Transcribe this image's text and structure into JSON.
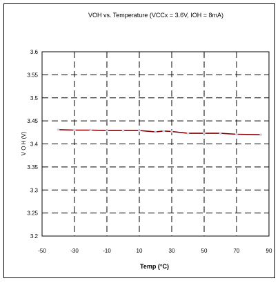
{
  "chart_data": {
    "type": "line",
    "title": "VOH vs. Temperature (VCCx = 3.6V, IOH = 8mA)",
    "xlabel": "Temp (°C)",
    "ylabel": "V O H  (V)",
    "xlim": [
      -50,
      90
    ],
    "ylim": [
      3.2,
      3.6
    ],
    "x_ticks": [
      -50,
      -30,
      -10,
      10,
      30,
      50,
      70,
      90
    ],
    "y_ticks": [
      3.2,
      3.25,
      3.3,
      3.35,
      3.4,
      3.45,
      3.5,
      3.55,
      3.6
    ],
    "x_tick_labels": [
      "-50",
      "-30",
      "-10",
      "10",
      "30",
      "50",
      "70",
      "90"
    ],
    "y_tick_labels": [
      "3.2",
      "3.25",
      "3.3",
      "3.35",
      "3.4",
      "3.45",
      "3.5",
      "3.55",
      "3.6"
    ],
    "grid": "dashed",
    "legend": "none",
    "series": [
      {
        "color": "#8b0000",
        "marker_color": "#c8d4ea",
        "x": [
          -40,
          -30,
          -20,
          -10,
          0,
          10,
          20,
          25,
          30,
          40,
          50,
          60,
          70,
          85
        ],
        "y": [
          3.431,
          3.43,
          3.43,
          3.429,
          3.429,
          3.429,
          3.426,
          3.428,
          3.427,
          3.423,
          3.423,
          3.423,
          3.421,
          3.42
        ]
      }
    ]
  }
}
